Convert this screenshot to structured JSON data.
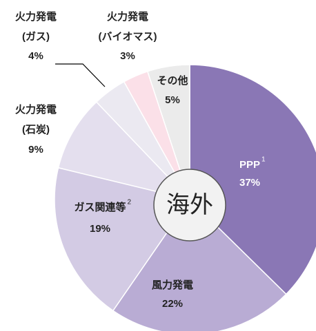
{
  "chart_data": {
    "type": "pie",
    "categories": [
      [
        "PPP"
      ],
      [
        "風力発電"
      ],
      [
        "ガス関連等"
      ],
      [
        "火力発電",
        "(石炭)"
      ],
      [
        "火力発電",
        "(ガス)"
      ],
      [
        "火力発電",
        "(バイオマス)"
      ],
      [
        "その他"
      ]
    ],
    "superscripts": [
      "1",
      null,
      "2",
      null,
      null,
      null,
      null
    ],
    "values": [
      37,
      22,
      19,
      9,
      4,
      3,
      5
    ],
    "value_labels": [
      "37%",
      "22%",
      "19%",
      "9%",
      "4%",
      "3%",
      "5%"
    ],
    "colors": [
      "#8a77b5",
      "#b9acd4",
      "#d3cbe4",
      "#e4dfee",
      "#ebe9f1",
      "#fbe0e8",
      "#ebebeb"
    ],
    "center_label": "海外"
  }
}
